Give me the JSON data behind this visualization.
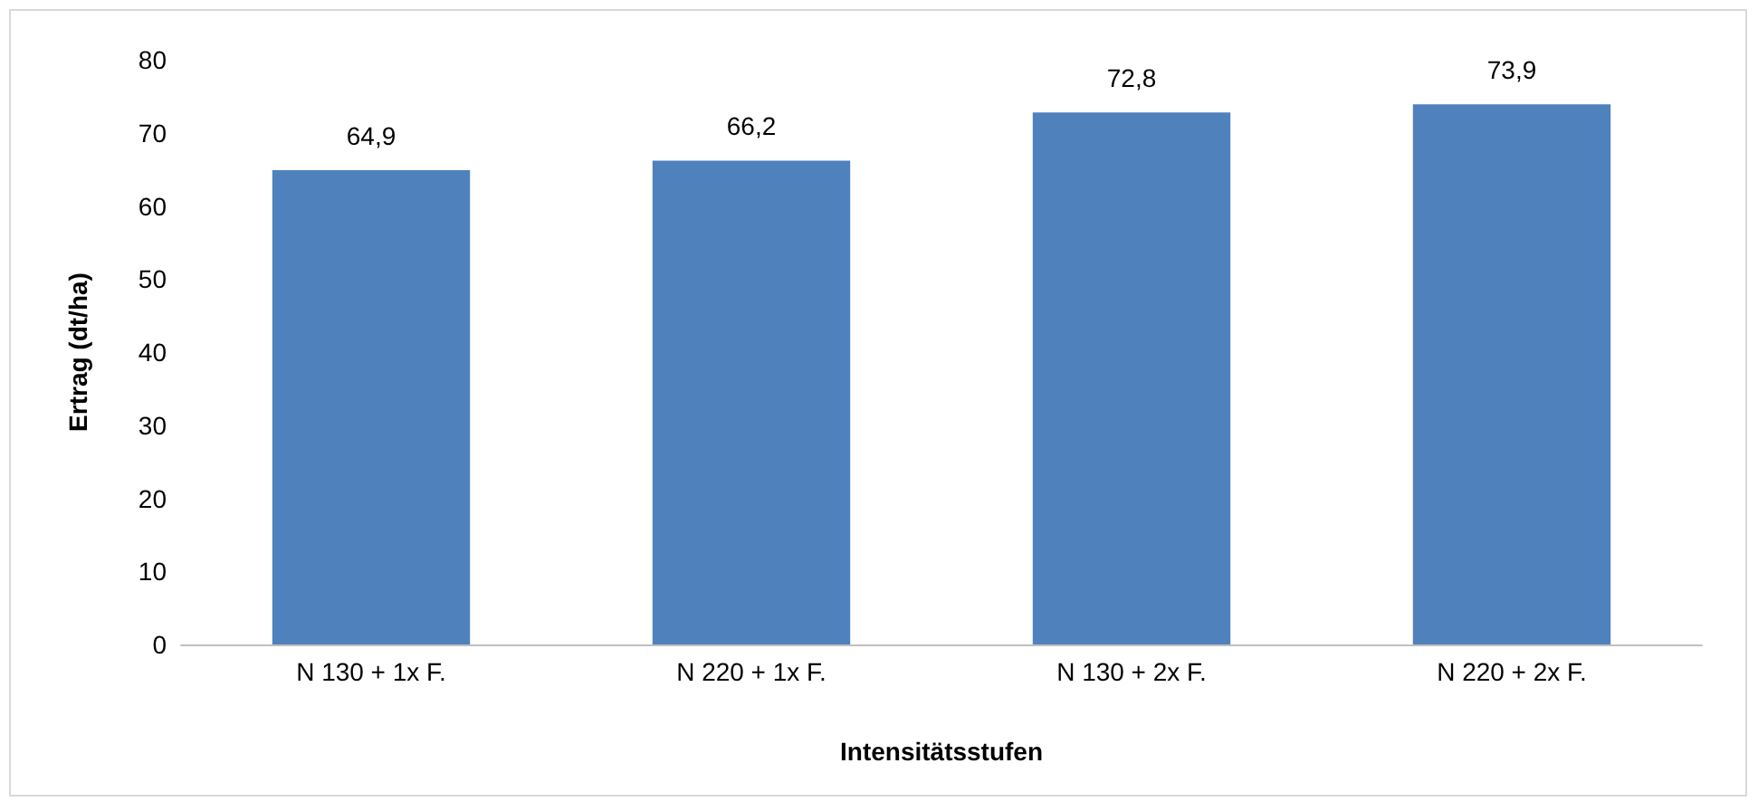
{
  "chart_data": {
    "type": "bar",
    "xlabel": "Intensitätsstufen",
    "ylabel": "Ertrag (dt/ha)",
    "categories": [
      "N 130 + 1x F.",
      "N 220 + 1x F.",
      "N 130 + 2x F.",
      "N 220 + 2x F."
    ],
    "values": [
      64.9,
      66.2,
      72.8,
      73.9
    ],
    "value_labels": [
      "64,9",
      "66,2",
      "72,8",
      "73,9"
    ],
    "color": "#4f81bd",
    "ylim": [
      0,
      80
    ],
    "yticks": [
      0,
      10,
      20,
      30,
      40,
      50,
      60,
      70,
      80
    ],
    "grid": false
  }
}
